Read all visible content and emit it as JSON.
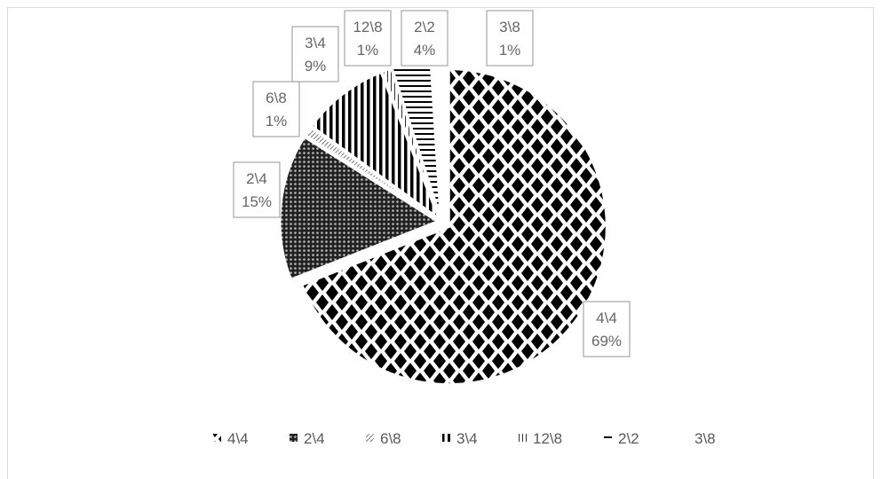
{
  "chart_data": {
    "type": "pie",
    "title": "",
    "categories": [
      "4\\4",
      "2\\4",
      "6\\8",
      "3\\4",
      "12\\8",
      "2\\2",
      "3\\8"
    ],
    "values": [
      69,
      15,
      1,
      9,
      1,
      4,
      1
    ],
    "data_labels": [
      "69%",
      "15%",
      "1%",
      "9%",
      "1%",
      "4%",
      "1%"
    ],
    "patterns": [
      "diamond-checker",
      "dotted-dense",
      "light-diagonal",
      "vertical-stripes",
      "thin-vertical",
      "horizontal-stripes",
      "none"
    ],
    "legend_position": "bottom",
    "start_angle_deg": 0,
    "direction": "clockwise"
  }
}
